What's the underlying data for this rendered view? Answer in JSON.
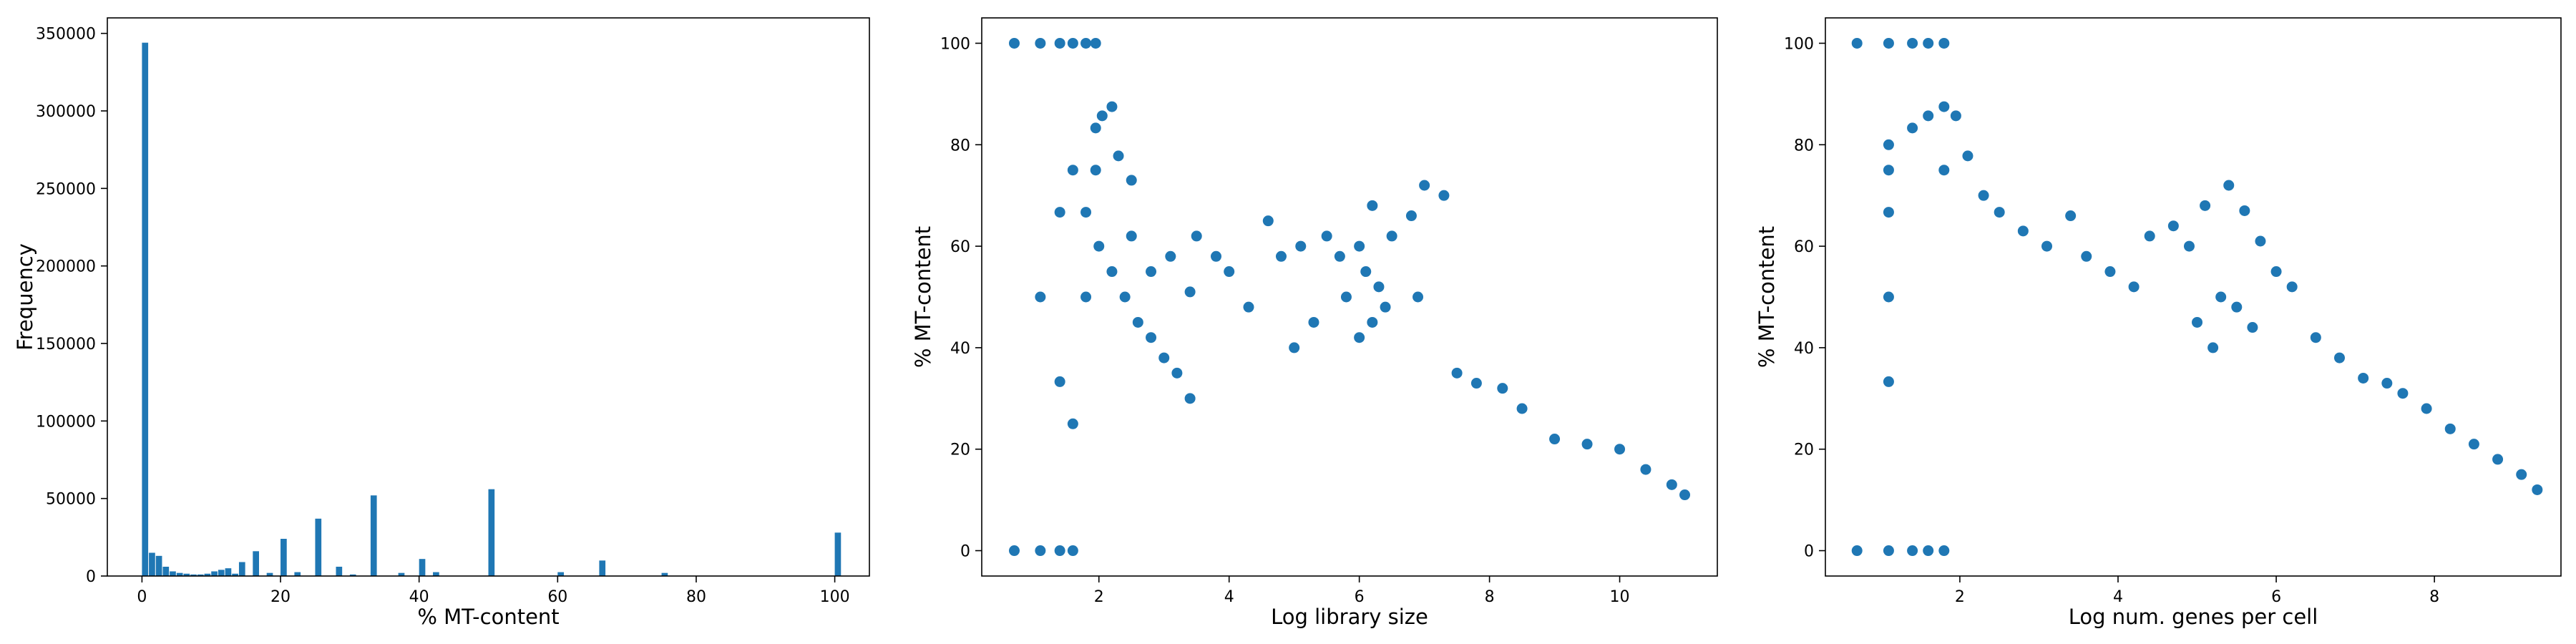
{
  "figure": {
    "point_color": "#1f77b4",
    "bar_color": "#1f77b4"
  },
  "chart_data": [
    {
      "type": "bar",
      "chart_kind": "histogram",
      "title": "",
      "xlabel": "% MT-content",
      "ylabel": "Frequency",
      "xlim": [
        -5,
        105
      ],
      "ylim": [
        0,
        360000
      ],
      "xticks": [
        0,
        20,
        40,
        60,
        80,
        100
      ],
      "yticks": [
        0,
        50000,
        100000,
        150000,
        200000,
        250000,
        300000,
        350000
      ],
      "grid": false,
      "bin_width": 1,
      "bins": [
        {
          "x": 0,
          "value": 344000
        },
        {
          "x": 1,
          "value": 15000
        },
        {
          "x": 2,
          "value": 13000
        },
        {
          "x": 3,
          "value": 6000
        },
        {
          "x": 4,
          "value": 3000
        },
        {
          "x": 5,
          "value": 2000
        },
        {
          "x": 6,
          "value": 1500
        },
        {
          "x": 7,
          "value": 1000
        },
        {
          "x": 8,
          "value": 1000
        },
        {
          "x": 9,
          "value": 1500
        },
        {
          "x": 10,
          "value": 3000
        },
        {
          "x": 11,
          "value": 4000
        },
        {
          "x": 12,
          "value": 5000
        },
        {
          "x": 13,
          "value": 1500
        },
        {
          "x": 14,
          "value": 9000
        },
        {
          "x": 16,
          "value": 16000
        },
        {
          "x": 18,
          "value": 2000
        },
        {
          "x": 20,
          "value": 24000
        },
        {
          "x": 22,
          "value": 2500
        },
        {
          "x": 25,
          "value": 37000
        },
        {
          "x": 28,
          "value": 6000
        },
        {
          "x": 30,
          "value": 1000
        },
        {
          "x": 33,
          "value": 52000
        },
        {
          "x": 37,
          "value": 2000
        },
        {
          "x": 40,
          "value": 11000
        },
        {
          "x": 42,
          "value": 2500
        },
        {
          "x": 50,
          "value": 56000
        },
        {
          "x": 60,
          "value": 2500
        },
        {
          "x": 66,
          "value": 10000
        },
        {
          "x": 75,
          "value": 2000
        },
        {
          "x": 100,
          "value": 28000
        }
      ]
    },
    {
      "type": "scatter",
      "title": "",
      "xlabel": "Log library size",
      "ylabel": "% MT-content",
      "xlim": [
        0.2,
        11.5
      ],
      "ylim": [
        -5,
        105
      ],
      "xticks": [
        2,
        4,
        6,
        8,
        10
      ],
      "yticks": [
        0,
        20,
        40,
        60,
        80,
        100
      ],
      "grid": false,
      "points": [
        [
          0.7,
          100
        ],
        [
          1.1,
          100
        ],
        [
          1.4,
          100
        ],
        [
          1.6,
          100
        ],
        [
          1.8,
          100
        ],
        [
          1.95,
          100
        ],
        [
          0.7,
          0
        ],
        [
          1.1,
          0
        ],
        [
          1.4,
          0
        ],
        [
          1.6,
          0
        ],
        [
          1.1,
          50
        ],
        [
          1.4,
          66.7
        ],
        [
          1.6,
          75
        ],
        [
          1.8,
          66.7
        ],
        [
          1.8,
          50
        ],
        [
          1.4,
          33.3
        ],
        [
          1.6,
          25
        ],
        [
          1.95,
          75
        ],
        [
          1.95,
          83.3
        ],
        [
          2.05,
          85.7
        ],
        [
          2.2,
          87.5
        ],
        [
          2.3,
          77.8
        ],
        [
          2.5,
          73
        ],
        [
          2.0,
          60
        ],
        [
          2.2,
          55
        ],
        [
          2.4,
          50
        ],
        [
          2.6,
          45
        ],
        [
          2.8,
          42
        ],
        [
          3.0,
          38
        ],
        [
          3.2,
          35
        ],
        [
          3.4,
          30
        ],
        [
          2.5,
          62
        ],
        [
          2.8,
          55
        ],
        [
          3.1,
          58
        ],
        [
          3.4,
          51
        ],
        [
          3.5,
          62
        ],
        [
          3.8,
          58
        ],
        [
          4.0,
          55
        ],
        [
          4.3,
          48
        ],
        [
          4.6,
          65
        ],
        [
          4.8,
          58
        ],
        [
          5.1,
          60
        ],
        [
          5.5,
          62
        ],
        [
          5.7,
          58
        ],
        [
          6.0,
          60
        ],
        [
          6.2,
          68
        ],
        [
          6.5,
          62
        ],
        [
          6.8,
          66
        ],
        [
          7.0,
          72
        ],
        [
          7.3,
          70
        ],
        [
          6.9,
          50
        ],
        [
          7.5,
          35
        ],
        [
          7.8,
          33
        ],
        [
          8.2,
          32
        ],
        [
          8.5,
          28
        ],
        [
          9.0,
          22
        ],
        [
          9.5,
          21
        ],
        [
          10.0,
          20
        ],
        [
          10.4,
          16
        ],
        [
          10.8,
          13
        ],
        [
          11.0,
          11
        ],
        [
          5.0,
          40
        ],
        [
          5.3,
          45
        ],
        [
          5.8,
          50
        ],
        [
          6.1,
          55
        ],
        [
          6.3,
          52
        ],
        [
          6.4,
          48
        ],
        [
          6.2,
          45
        ],
        [
          6.0,
          42
        ]
      ]
    },
    {
      "type": "scatter",
      "title": "",
      "xlabel": "Log num. genes per cell",
      "ylabel": "% MT-content",
      "xlim": [
        0.3,
        9.6
      ],
      "ylim": [
        -5,
        105
      ],
      "xticks": [
        2,
        4,
        6,
        8
      ],
      "yticks": [
        0,
        20,
        40,
        60,
        80,
        100
      ],
      "grid": false,
      "points": [
        [
          0.7,
          100
        ],
        [
          1.1,
          100
        ],
        [
          1.4,
          100
        ],
        [
          1.6,
          100
        ],
        [
          1.8,
          100
        ],
        [
          0.7,
          0
        ],
        [
          1.1,
          0
        ],
        [
          1.4,
          0
        ],
        [
          1.6,
          0
        ],
        [
          1.8,
          0
        ],
        [
          1.1,
          50
        ],
        [
          1.1,
          66.7
        ],
        [
          1.1,
          75
        ],
        [
          1.1,
          80
        ],
        [
          1.1,
          33.3
        ],
        [
          1.4,
          83.3
        ],
        [
          1.6,
          85.7
        ],
        [
          1.8,
          87.5
        ],
        [
          1.8,
          75
        ],
        [
          1.95,
          85.7
        ],
        [
          2.1,
          77.8
        ],
        [
          2.3,
          70
        ],
        [
          2.5,
          66.7
        ],
        [
          2.8,
          63
        ],
        [
          3.1,
          60
        ],
        [
          3.4,
          66
        ],
        [
          3.6,
          58
        ],
        [
          3.9,
          55
        ],
        [
          4.2,
          52
        ],
        [
          4.4,
          62
        ],
        [
          4.7,
          64
        ],
        [
          4.9,
          60
        ],
        [
          5.1,
          68
        ],
        [
          5.4,
          72
        ],
        [
          5.6,
          67
        ],
        [
          5.8,
          61
        ],
        [
          6.0,
          55
        ],
        [
          6.2,
          52
        ],
        [
          6.5,
          42
        ],
        [
          6.8,
          38
        ],
        [
          7.1,
          34
        ],
        [
          7.4,
          33
        ],
        [
          7.6,
          31
        ],
        [
          7.9,
          28
        ],
        [
          8.2,
          24
        ],
        [
          8.5,
          21
        ],
        [
          8.8,
          18
        ],
        [
          9.1,
          15
        ],
        [
          9.3,
          12
        ],
        [
          5.0,
          45
        ],
        [
          5.3,
          50
        ],
        [
          5.5,
          48
        ],
        [
          5.7,
          44
        ],
        [
          5.2,
          40
        ]
      ]
    }
  ]
}
